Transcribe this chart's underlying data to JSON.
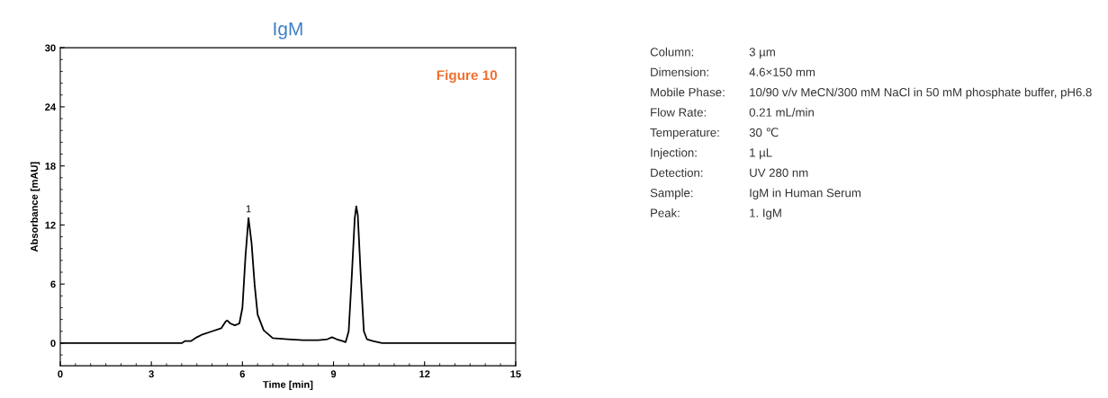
{
  "chart_data": [
    {
      "type": "line",
      "title": "IgM",
      "xlabel": "Time [min]",
      "ylabel": "Absorbance [mAU]",
      "xlim": [
        0,
        15
      ],
      "xticks": [
        0,
        3,
        6,
        9,
        12,
        15
      ],
      "ylim": [
        -2.3,
        30
      ],
      "yticks": [
        0,
        6,
        12,
        18,
        24,
        30
      ],
      "grid": false,
      "marker": "none",
      "line_style": "solid",
      "annotations": [
        "Figure 10",
        {
          "text": "1",
          "x": 6.2,
          "y": 12.7
        }
      ],
      "series": [
        {
          "color": "#000000",
          "x": [
            0,
            1,
            2,
            3,
            3.7,
            4.0,
            4.1,
            4.3,
            4.5,
            4.7,
            5.0,
            5.3,
            5.45,
            5.5,
            5.6,
            5.75,
            5.9,
            6.0,
            6.1,
            6.2,
            6.3,
            6.4,
            6.5,
            6.7,
            7.0,
            7.5,
            8.0,
            8.5,
            8.8,
            8.95,
            9.1,
            9.3,
            9.4,
            9.5,
            9.6,
            9.7,
            9.75,
            9.8,
            9.9,
            10.0,
            10.1,
            10.3,
            10.6,
            12,
            13.0,
            15
          ],
          "values": [
            0,
            0,
            0,
            0,
            0,
            0,
            0.2,
            0.2,
            0.6,
            0.9,
            1.2,
            1.5,
            2.2,
            2.3,
            2.0,
            1.8,
            2.0,
            3.6,
            8.8,
            12.7,
            10.2,
            6.0,
            2.9,
            1.3,
            0.5,
            0.4,
            0.3,
            0.3,
            0.4,
            0.6,
            0.4,
            0.2,
            0.1,
            1.2,
            6.7,
            12.7,
            13.9,
            13.0,
            6.7,
            1.2,
            0.4,
            0.2,
            0,
            0,
            0,
            0
          ]
        }
      ]
    },
    {
      "type": "other",
      "annotations": [
        "Column:",
        "3 µm",
        "Dimension:",
        "4.6×150 mm",
        "Mobile Phase:",
        "10/90 v/v MeCN/300 mM NaCl in 50 mM phosphate buffer, pH6.8",
        "Flow Rate:",
        "0.21 mL/min",
        "Temperature:",
        "30 ℃",
        "Injection:",
        "1 µL",
        "Detection:",
        "UV 280 nm",
        "Sample:",
        "IgM in Human Serum",
        "Peak:",
        "1. IgM"
      ]
    }
  ]
}
